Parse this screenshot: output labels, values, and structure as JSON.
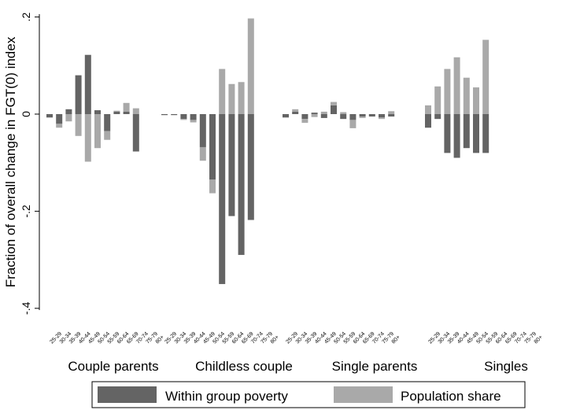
{
  "chart_data": {
    "type": "bar",
    "stacked": true,
    "ylabel": "Fraction of overall change in FGT(0) index",
    "ylim": [
      -0.4,
      0.2
    ],
    "yticks": [
      {
        "value": 0.2,
        "label": ".2"
      },
      {
        "value": 0,
        "label": "0"
      },
      {
        "value": -0.2,
        "label": "-.2"
      },
      {
        "value": -0.4,
        "label": "-.4"
      }
    ],
    "grid": false,
    "legend_position": "bottom",
    "age_groups": [
      "25-29",
      "30-34",
      "35-39",
      "40-44",
      "45-49",
      "50-54",
      "55-59",
      "60-64",
      "65-69",
      "70-74",
      "75-79",
      "80+"
    ],
    "groups": [
      "Couple parents",
      "Childless couple",
      "Single parents",
      "Singles"
    ],
    "series": [
      {
        "name": "Within group poverty",
        "color": "#646464",
        "values": [
          [
            -0.007,
            -0.02,
            0.01,
            0.08,
            0.122,
            0.008,
            -0.035,
            0.005,
            0.005,
            -0.077,
            0,
            0
          ],
          [
            -0.002,
            -0.002,
            -0.01,
            -0.012,
            -0.068,
            -0.135,
            -0.35,
            -0.21,
            -0.29,
            -0.218,
            0,
            0
          ],
          [
            -0.007,
            0.005,
            -0.01,
            0.003,
            -0.008,
            0.018,
            -0.01,
            -0.012,
            -0.005,
            -0.005,
            -0.007,
            -0.005
          ],
          [
            -0.028,
            -0.01,
            -0.08,
            -0.09,
            -0.07,
            -0.08,
            -0.08,
            0,
            0,
            0,
            0,
            0
          ]
        ]
      },
      {
        "name": "Population share",
        "color": "#a9a9a9",
        "values": [
          [
            0,
            -0.008,
            -0.015,
            -0.045,
            -0.098,
            -0.07,
            -0.018,
            0.002,
            0.018,
            0.012,
            0,
            0
          ],
          [
            0,
            0,
            -0.002,
            -0.005,
            -0.028,
            -0.028,
            0.093,
            0.062,
            0.066,
            0.197,
            0,
            0
          ],
          [
            0,
            0.005,
            -0.008,
            -0.006,
            0.005,
            0.007,
            0.004,
            -0.017,
            -0.003,
            0,
            -0.003,
            0.006
          ],
          [
            0.018,
            0.057,
            0.093,
            0.117,
            0.075,
            0.055,
            0.153,
            0,
            0,
            0,
            0,
            0
          ]
        ]
      }
    ]
  }
}
